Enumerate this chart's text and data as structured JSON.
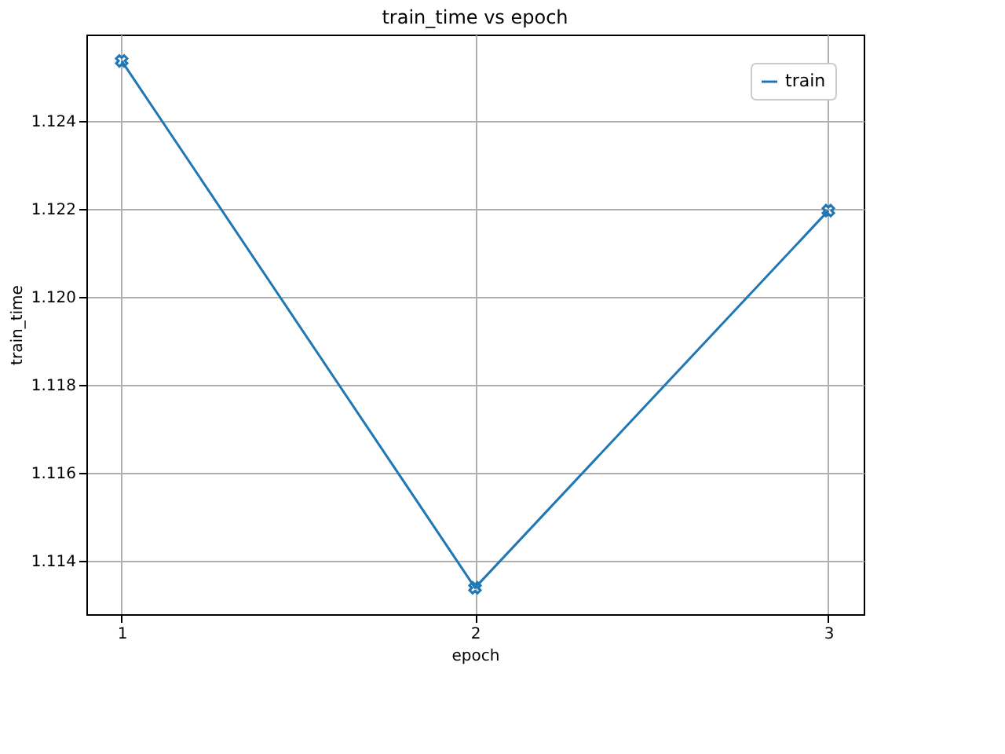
{
  "chart_data": {
    "type": "line",
    "title": "train_time vs epoch",
    "xlabel": "epoch",
    "ylabel": "train_time",
    "x": [
      1,
      2,
      3
    ],
    "series": [
      {
        "name": "train",
        "color": "#1f77b4",
        "values": [
          1.12536,
          1.11339,
          1.12196
        ]
      }
    ],
    "xlim": [
      0.9,
      3.1
    ],
    "xticks": [
      1,
      2,
      3
    ],
    "ylim": [
      1.11279,
      1.12596
    ],
    "yticks": [
      {
        "value": 1.114,
        "label": "1.114"
      },
      {
        "value": 1.116,
        "label": "1.116"
      },
      {
        "value": 1.118,
        "label": "1.118"
      },
      {
        "value": 1.12,
        "label": "1.120"
      },
      {
        "value": 1.122,
        "label": "1.122"
      },
      {
        "value": 1.124,
        "label": "1.124"
      }
    ],
    "grid": true,
    "legend": "top right",
    "marker": "cross",
    "line_style": "solid"
  }
}
